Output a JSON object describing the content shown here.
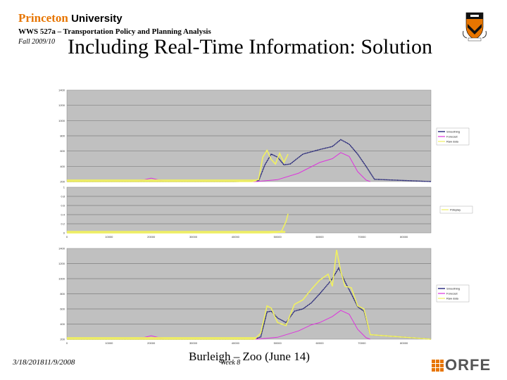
{
  "header": {
    "brand_part1": "Princeton",
    "brand_part2": "University",
    "course": "WWS 527a – Transportation Policy and Planning Analysis",
    "term": "Fall 2009/10",
    "title": "Including Real-Time Information: Solution",
    "crest_icon": "princeton-shield-icon"
  },
  "footer": {
    "date": "3/18/201811/9/2008",
    "week": "Week 8",
    "slide_title": "Burleigh – Zoo (June 14)",
    "logo_text": "ORFE"
  },
  "colors": {
    "plot_bg": "#c0c0c0",
    "gridline": "#808080",
    "series_smoothing": "#000066",
    "series_forecast": "#dd33dd",
    "series_raw": "#f0f060",
    "princeton_orange": "#e77500"
  },
  "chart_data": [
    {
      "type": "line",
      "title": "",
      "xlabel": "",
      "ylabel": "",
      "xlim": [
        0,
        86400
      ],
      "ylim": [
        200,
        1400
      ],
      "yticks": [
        "1400",
        "1200",
        "1000",
        "800",
        "600",
        "400",
        "200"
      ],
      "grid": true,
      "legend_position": "right",
      "series": [
        {
          "name": "Smoothing",
          "color": "#000066",
          "x": [
            0,
            20000,
            40000,
            45500,
            47000,
            48500,
            50000,
            51500,
            53000,
            56000,
            60000,
            63000,
            65000,
            67000,
            69000,
            71000,
            73000,
            86400
          ],
          "values": [
            200,
            200,
            200,
            210,
            420,
            560,
            520,
            420,
            430,
            560,
            620,
            660,
            750,
            690,
            560,
            400,
            230,
            200
          ]
        },
        {
          "name": "Forecast",
          "color": "#dd33dd",
          "x": [
            0,
            17000,
            20000,
            23000,
            45000,
            50000,
            55000,
            60000,
            63000,
            65000,
            67000,
            69000,
            71000,
            72000
          ],
          "values": [
            200,
            205,
            245,
            205,
            200,
            225,
            310,
            450,
            500,
            580,
            530,
            330,
            220,
            200
          ]
        },
        {
          "name": "Raw data",
          "color": "#f0f060",
          "x": [
            0,
            44000,
            45500,
            46500,
            47500,
            48500,
            49500,
            50500,
            51500,
            52500
          ],
          "values": [
            200,
            200,
            230,
            520,
            610,
            490,
            430,
            570,
            450,
            560
          ]
        }
      ]
    },
    {
      "type": "line",
      "title": "",
      "xlabel": "",
      "ylabel": "",
      "xlim": [
        0,
        86400
      ],
      "ylim": [
        0,
        1
      ],
      "yticks": [
        "1",
        "0.8",
        "0.6",
        "0.4",
        "0.2",
        "0"
      ],
      "xticks": [
        "0",
        "10000",
        "20000",
        "30000",
        "40000",
        "50000",
        "60000",
        "70000",
        "80000"
      ],
      "grid": true,
      "legend_position": "right",
      "series": [
        {
          "name": "Pdisplay",
          "color": "#f0f060",
          "x": [
            0,
            48000,
            50000,
            51000,
            52000,
            52500
          ],
          "values": [
            0,
            0,
            0.01,
            0.05,
            0.25,
            0.42
          ]
        }
      ]
    },
    {
      "type": "line",
      "title": "",
      "xlabel": "",
      "ylabel": "",
      "xlim": [
        0,
        86400
      ],
      "ylim": [
        200,
        1400
      ],
      "yticks": [
        "1400",
        "1200",
        "1000",
        "800",
        "600",
        "400",
        "200"
      ],
      "xticks": [
        "0",
        "10000",
        "20000",
        "30000",
        "40000",
        "50000",
        "60000",
        "70000",
        "80000"
      ],
      "grid": true,
      "legend_position": "right",
      "series": [
        {
          "name": "Smoothing",
          "color": "#000066",
          "x": [
            0,
            44500,
            46000,
            47500,
            48500,
            50000,
            52000,
            54000,
            56000,
            58000,
            60000,
            62000,
            63000,
            64500,
            66000,
            67500,
            69000,
            70500,
            72000,
            86400
          ],
          "values": [
            200,
            200,
            230,
            560,
            570,
            480,
            420,
            570,
            600,
            680,
            800,
            930,
            1000,
            1140,
            960,
            800,
            630,
            570,
            260,
            200
          ]
        },
        {
          "name": "Forecast",
          "color": "#dd33dd",
          "x": [
            0,
            17000,
            20000,
            23000,
            45000,
            50000,
            55000,
            58000,
            60000,
            63000,
            65000,
            67000,
            69000,
            71000,
            72000
          ],
          "values": [
            200,
            205,
            245,
            205,
            200,
            225,
            310,
            390,
            420,
            500,
            580,
            530,
            330,
            220,
            200
          ]
        },
        {
          "name": "Raw data",
          "color": "#f0f060",
          "x": [
            0,
            44500,
            46000,
            47500,
            48500,
            50000,
            52000,
            54000,
            56000,
            58000,
            60000,
            62000,
            63000,
            64000,
            65000,
            66000,
            67500,
            69000,
            70500,
            72000,
            86400
          ],
          "values": [
            200,
            200,
            280,
            640,
            610,
            420,
            380,
            660,
            720,
            860,
            980,
            1060,
            900,
            1380,
            1100,
            900,
            880,
            640,
            600,
            260,
            200
          ]
        }
      ]
    }
  ]
}
